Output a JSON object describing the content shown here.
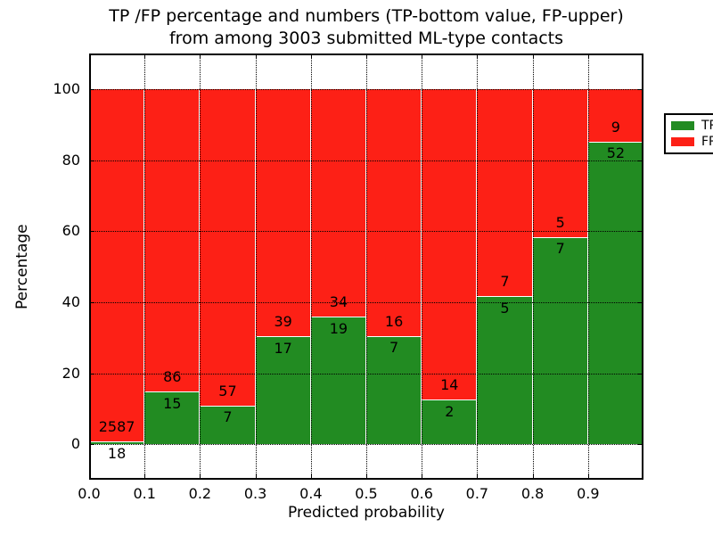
{
  "figure": {
    "title_line1": "TP /FP percentage and numbers (TP-bottom value, FP-upper)",
    "title_line2": "from among 3003 submitted ML-type contacts"
  },
  "chart_data": {
    "type": "bar",
    "stacked": true,
    "normalized": "each 0.1-wide bin scaled to 100%, TP on bottom, FP on top",
    "title": "TP /FP percentage and numbers (TP-bottom value, FP-upper) from among 3003 submitted ML-type contacts",
    "xlabel": "Predicted probability",
    "ylabel": "Percentage",
    "bins": [
      "0.0-0.1",
      "0.1-0.2",
      "0.2-0.3",
      "0.3-0.4",
      "0.4-0.5",
      "0.5-0.6",
      "0.6-0.7",
      "0.7-0.8",
      "0.8-0.9",
      "0.9-1.0"
    ],
    "x_tick_labels": [
      "0.0",
      "0.1",
      "0.2",
      "0.3",
      "0.4",
      "0.5",
      "0.6",
      "0.7",
      "0.8",
      "0.9"
    ],
    "y_ticks": [
      0,
      20,
      40,
      60,
      80,
      100
    ],
    "xlim": [
      0.0,
      1.0
    ],
    "ylim": [
      -10,
      110
    ],
    "grid": "dotted black, horizontal at y ticks and vertical at each 0.1",
    "total_contacts": 3003,
    "bar_edge_color": "#ffffff",
    "series": [
      {
        "name": "TP",
        "color": "#228b22",
        "counts": [
          18,
          15,
          7,
          17,
          19,
          7,
          2,
          5,
          7,
          52
        ]
      },
      {
        "name": "FP",
        "color": "#fd2016",
        "counts": [
          2587,
          86,
          57,
          39,
          34,
          16,
          14,
          7,
          5,
          9
        ]
      }
    ],
    "legend_position": "upper right"
  }
}
